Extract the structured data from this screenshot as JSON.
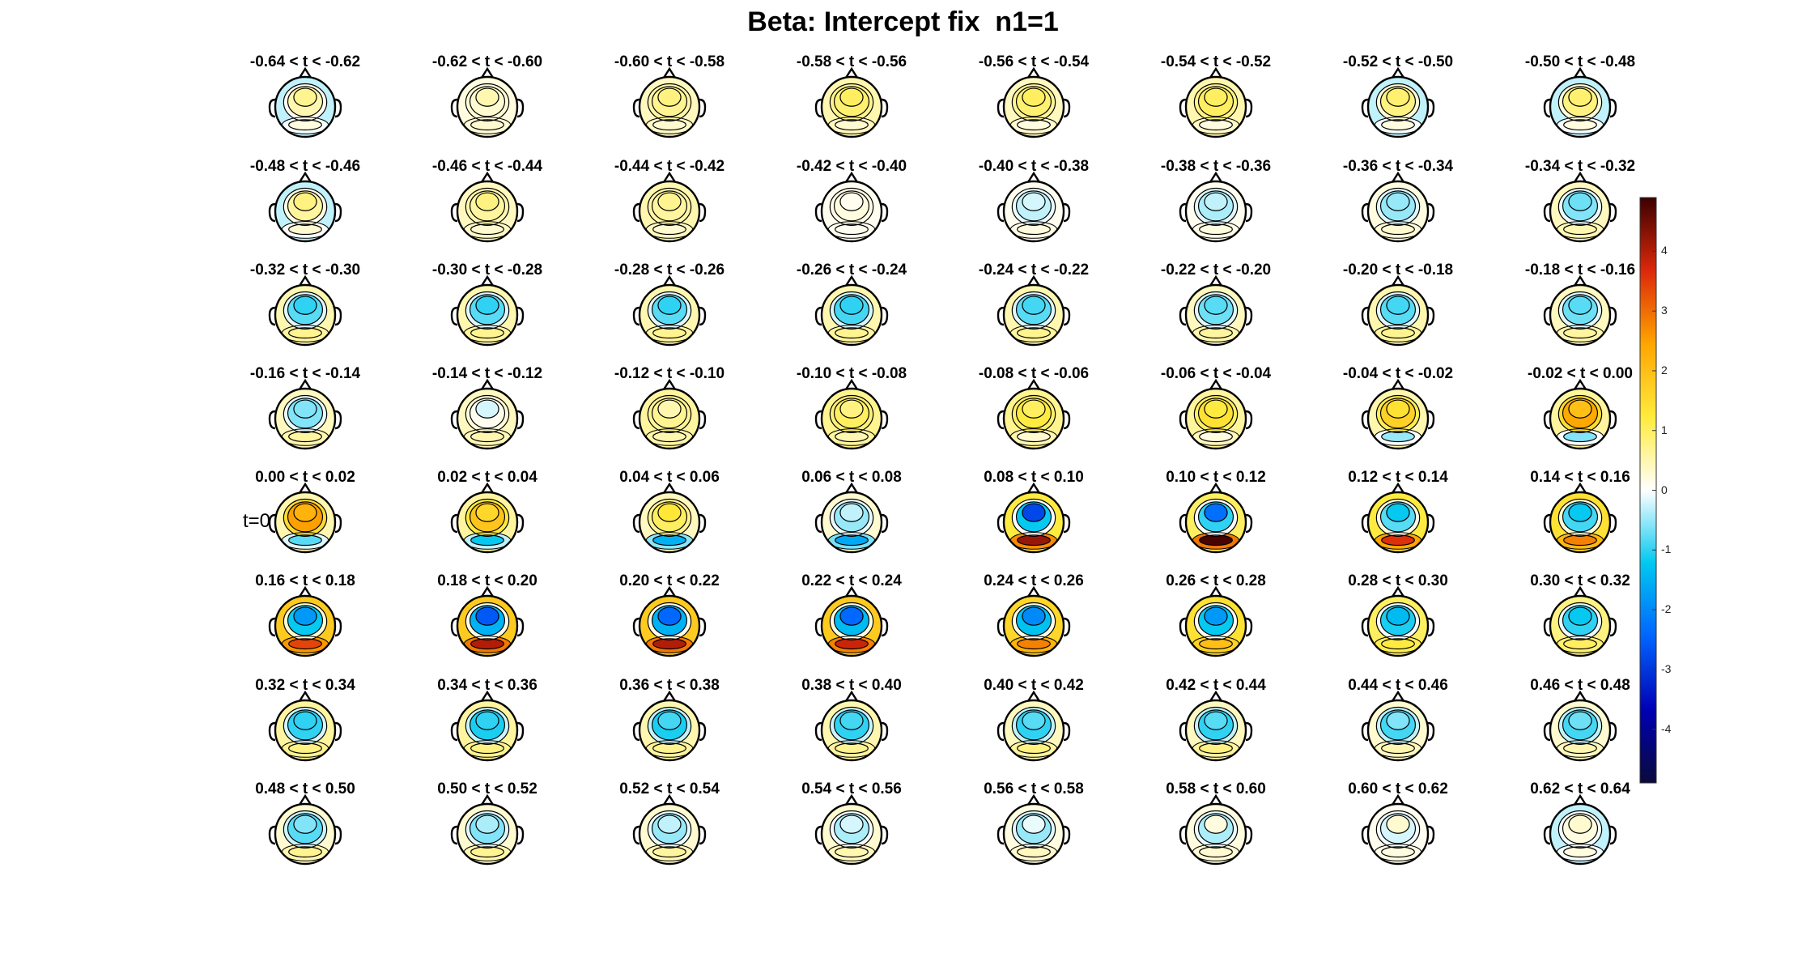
{
  "figure": {
    "title": "Beta: Intercept fix  n1=1"
  },
  "chart_data": {
    "type": "heatmap",
    "title": "Beta: Intercept fix  n1=1",
    "grid_rows": 8,
    "grid_cols": 8,
    "row_marker": "t=0",
    "row_marker_row": 4,
    "colorbar": {
      "range": [
        -4.9,
        4.9
      ],
      "ticks": [
        -4,
        -3,
        -2,
        -1,
        0,
        1,
        2,
        3,
        4
      ],
      "tick_labels": [
        "-4",
        "-3",
        "-2",
        "-1",
        "0",
        "1",
        "2",
        "3",
        "4"
      ],
      "colormap": [
        "#0a0a3c",
        "#0000b4",
        "#0064ff",
        "#00c8f0",
        "#ffffff",
        "#ffeb3c",
        "#ffa500",
        "#dc280a",
        "#3c0000"
      ]
    },
    "panels": [
      {
        "label": "-0.64 < t < -0.62",
        "frontal": 0.7,
        "central": 0.5,
        "posterior": -0.3,
        "occipital": 0.2
      },
      {
        "label": "-0.62 < t < -0.60",
        "frontal": 0.5,
        "central": 0.3,
        "posterior": 0.2,
        "occipital": 0.3
      },
      {
        "label": "-0.60 < t < -0.58",
        "frontal": 0.8,
        "central": 0.7,
        "posterior": 0.4,
        "occipital": 0.3
      },
      {
        "label": "-0.58 < t < -0.56",
        "frontal": 1.0,
        "central": 0.9,
        "posterior": 0.5,
        "occipital": 0.3
      },
      {
        "label": "-0.56 < t < -0.54",
        "frontal": 1.0,
        "central": 0.9,
        "posterior": 0.4,
        "occipital": 0.2
      },
      {
        "label": "-0.54 < t < -0.52",
        "frontal": 1.0,
        "central": 1.0,
        "posterior": 0.5,
        "occipital": 0.2
      },
      {
        "label": "-0.52 < t < -0.50",
        "frontal": 0.9,
        "central": 0.8,
        "posterior": -0.3,
        "occipital": 0.2
      },
      {
        "label": "-0.50 < t < -0.48",
        "frontal": 0.9,
        "central": 0.8,
        "posterior": -0.3,
        "occipital": 0.2
      },
      {
        "label": "-0.48 < t < -0.46",
        "frontal": 0.8,
        "central": 0.6,
        "posterior": -0.3,
        "occipital": 0.3
      },
      {
        "label": "-0.46 < t < -0.44",
        "frontal": 0.8,
        "central": 0.6,
        "posterior": 0.4,
        "occipital": 0.3
      },
      {
        "label": "-0.44 < t < -0.42",
        "frontal": 0.7,
        "central": 0.6,
        "posterior": 0.5,
        "occipital": 0.3
      },
      {
        "label": "-0.42 < t < -0.40",
        "frontal": 0.1,
        "central": 0.2,
        "posterior": 0.1,
        "occipital": 0.1
      },
      {
        "label": "-0.40 < t < -0.38",
        "frontal": -0.2,
        "central": -0.3,
        "posterior": 0.1,
        "occipital": 0.2
      },
      {
        "label": "-0.38 < t < -0.36",
        "frontal": -0.3,
        "central": -0.4,
        "posterior": 0.1,
        "occipital": 0.2
      },
      {
        "label": "-0.36 < t < -0.34",
        "frontal": -0.5,
        "central": -0.5,
        "posterior": 0.2,
        "occipital": 0.3
      },
      {
        "label": "-0.34 < t < -0.32",
        "frontal": -0.7,
        "central": -0.6,
        "posterior": 0.4,
        "occipital": 0.5
      },
      {
        "label": "-0.32 < t < -0.30",
        "frontal": -1.0,
        "central": -0.8,
        "posterior": 0.5,
        "occipital": 0.7
      },
      {
        "label": "-0.30 < t < -0.28",
        "frontal": -1.0,
        "central": -0.8,
        "posterior": 0.5,
        "occipital": 0.7
      },
      {
        "label": "-0.28 < t < -0.26",
        "frontal": -1.0,
        "central": -0.8,
        "posterior": 0.5,
        "occipital": 0.7
      },
      {
        "label": "-0.26 < t < -0.24",
        "frontal": -1.0,
        "central": -0.9,
        "posterior": 0.5,
        "occipital": 0.7
      },
      {
        "label": "-0.24 < t < -0.22",
        "frontal": -0.9,
        "central": -0.8,
        "posterior": 0.5,
        "occipital": 0.7
      },
      {
        "label": "-0.22 < t < -0.20",
        "frontal": -0.8,
        "central": -0.7,
        "posterior": 0.4,
        "occipital": 0.6
      },
      {
        "label": "-0.20 < t < -0.18",
        "frontal": -0.9,
        "central": -0.8,
        "posterior": 0.5,
        "occipital": 0.7
      },
      {
        "label": "-0.18 < t < -0.16",
        "frontal": -0.8,
        "central": -0.7,
        "posterior": 0.4,
        "occipital": 0.6
      },
      {
        "label": "-0.16 < t < -0.14",
        "frontal": -0.6,
        "central": -0.6,
        "posterior": 0.4,
        "occipital": 0.6
      },
      {
        "label": "-0.14 < t < -0.12",
        "frontal": -0.2,
        "central": 0.1,
        "posterior": 0.4,
        "occipital": 0.5
      },
      {
        "label": "-0.12 < t < -0.10",
        "frontal": 0.5,
        "central": 0.7,
        "posterior": 0.6,
        "occipital": 0.5
      },
      {
        "label": "-0.10 < t < -0.08",
        "frontal": 0.8,
        "central": 1.0,
        "posterior": 0.7,
        "occipital": 0.5
      },
      {
        "label": "-0.08 < t < -0.06",
        "frontal": 1.0,
        "central": 1.2,
        "posterior": 0.7,
        "occipital": 0.3
      },
      {
        "label": "-0.06 < t < -0.04",
        "frontal": 1.2,
        "central": 1.4,
        "posterior": 0.6,
        "occipital": 0.2
      },
      {
        "label": "-0.04 < t < -0.02",
        "frontal": 1.4,
        "central": 1.7,
        "posterior": 0.5,
        "occipital": -0.5
      },
      {
        "label": "-0.02 < t < 0.00",
        "frontal": 2.0,
        "central": 2.4,
        "posterior": 0.6,
        "occipital": -0.6
      },
      {
        "label": "0.00 < t < 0.02",
        "frontal": 2.2,
        "central": 2.5,
        "posterior": 0.5,
        "occipital": -0.8
      },
      {
        "label": "0.02 < t < 0.04",
        "frontal": 1.6,
        "central": 1.9,
        "posterior": 0.6,
        "occipital": -1.2
      },
      {
        "label": "0.04 < t < 0.06",
        "frontal": 1.3,
        "central": 1.0,
        "posterior": 0.4,
        "occipital": -1.5
      },
      {
        "label": "0.06 < t < 0.08",
        "frontal": -0.3,
        "central": -0.5,
        "posterior": 0.3,
        "occipital": -1.6
      },
      {
        "label": "0.08 < t < 0.10",
        "frontal": -2.8,
        "central": -1.2,
        "posterior": 1.2,
        "occipital": 4.2
      },
      {
        "label": "0.10 < t < 0.12",
        "frontal": -2.3,
        "central": -1.0,
        "posterior": 1.0,
        "occipital": 4.8
      },
      {
        "label": "0.12 < t < 0.14",
        "frontal": -1.2,
        "central": -0.8,
        "posterior": 1.2,
        "occipital": 3.6
      },
      {
        "label": "0.14 < t < 0.16",
        "frontal": -1.2,
        "central": -0.9,
        "posterior": 1.4,
        "occipital": 2.8
      },
      {
        "label": "0.16 < t < 0.18",
        "frontal": -1.8,
        "central": -1.2,
        "posterior": 1.8,
        "occipital": 3.4
      },
      {
        "label": "0.18 < t < 0.20",
        "frontal": -2.6,
        "central": -1.5,
        "posterior": 1.8,
        "occipital": 4.0
      },
      {
        "label": "0.20 < t < 0.22",
        "frontal": -2.4,
        "central": -1.5,
        "posterior": 1.8,
        "occipital": 4.0
      },
      {
        "label": "0.22 < t < 0.24",
        "frontal": -2.4,
        "central": -1.4,
        "posterior": 1.8,
        "occipital": 3.8
      },
      {
        "label": "0.24 < t < 0.26",
        "frontal": -2.0,
        "central": -1.3,
        "posterior": 1.6,
        "occipital": 2.8
      },
      {
        "label": "0.26 < t < 0.28",
        "frontal": -1.8,
        "central": -1.2,
        "posterior": 1.4,
        "occipital": 2.0
      },
      {
        "label": "0.28 < t < 0.30",
        "frontal": -1.4,
        "central": -1.1,
        "posterior": 1.0,
        "occipital": 1.2
      },
      {
        "label": "0.30 < t < 0.32",
        "frontal": -1.2,
        "central": -1.0,
        "posterior": 0.8,
        "occipital": 1.0
      },
      {
        "label": "0.32 < t < 0.34",
        "frontal": -1.0,
        "central": -1.0,
        "posterior": 0.6,
        "occipital": 0.8
      },
      {
        "label": "0.34 < t < 0.36",
        "frontal": -1.0,
        "central": -1.1,
        "posterior": 0.6,
        "occipital": 0.8
      },
      {
        "label": "0.36 < t < 0.38",
        "frontal": -0.9,
        "central": -1.1,
        "posterior": 0.5,
        "occipital": 0.7
      },
      {
        "label": "0.38 < t < 0.40",
        "frontal": -0.9,
        "central": -1.0,
        "posterior": 0.5,
        "occipital": 0.7
      },
      {
        "label": "0.40 < t < 0.42",
        "frontal": -0.8,
        "central": -1.0,
        "posterior": 0.4,
        "occipital": 0.8
      },
      {
        "label": "0.42 < t < 0.44",
        "frontal": -0.8,
        "central": -1.0,
        "posterior": 0.4,
        "occipital": 0.8
      },
      {
        "label": "0.44 < t < 0.46",
        "frontal": -0.6,
        "central": -0.9,
        "posterior": 0.3,
        "occipital": 0.5
      },
      {
        "label": "0.46 < t < 0.48",
        "frontal": -0.7,
        "central": -0.9,
        "posterior": 0.3,
        "occipital": 0.5
      },
      {
        "label": "0.48 < t < 0.50",
        "frontal": -0.6,
        "central": -0.8,
        "posterior": 0.3,
        "occipital": 0.7
      },
      {
        "label": "0.50 < t < 0.52",
        "frontal": -0.4,
        "central": -0.6,
        "posterior": 0.3,
        "occipital": 0.7
      },
      {
        "label": "0.52 < t < 0.54",
        "frontal": -0.3,
        "central": -0.5,
        "posterior": 0.3,
        "occipital": 0.6
      },
      {
        "label": "0.54 < t < 0.56",
        "frontal": -0.2,
        "central": -0.4,
        "posterior": 0.3,
        "occipital": 0.5
      },
      {
        "label": "0.56 < t < 0.58",
        "frontal": -0.1,
        "central": -0.5,
        "posterior": 0.2,
        "occipital": 0.4
      },
      {
        "label": "0.58 < t < 0.60",
        "frontal": 0.2,
        "central": -0.4,
        "posterior": 0.2,
        "occipital": 0.3
      },
      {
        "label": "0.60 < t < 0.62",
        "frontal": 0.3,
        "central": -0.2,
        "posterior": 0.1,
        "occipital": 0.2
      },
      {
        "label": "0.62 < t < 0.64",
        "frontal": 0.3,
        "central": 0.2,
        "posterior": -0.3,
        "occipital": 0.2
      }
    ]
  }
}
